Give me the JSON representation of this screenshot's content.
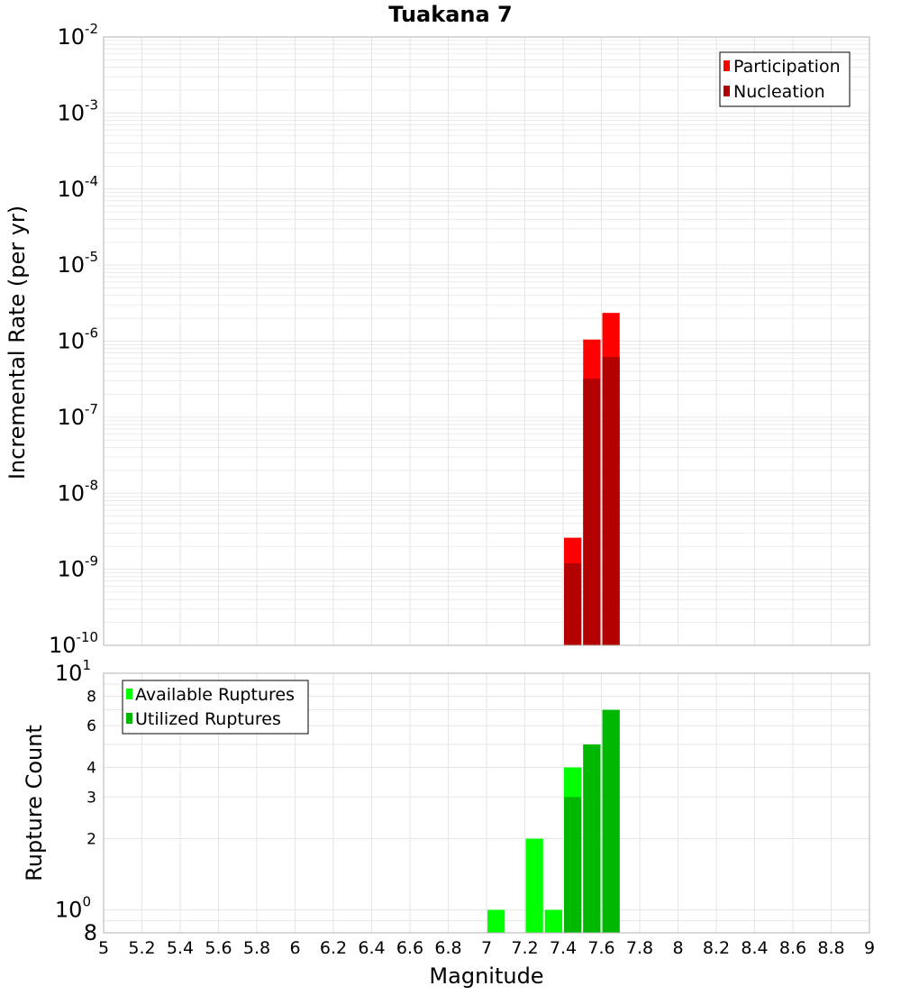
{
  "title": "Tuakana 7",
  "colors": {
    "participation": "#ff0000",
    "nucleation": "#b30000",
    "available": "#00ff00",
    "utilized": "#00b800",
    "grid": "#e6e6e6",
    "frame": "#b0b0b0"
  },
  "chart_data": [
    {
      "type": "bar",
      "title": "Tuakana 7",
      "xlabel": "",
      "ylabel": "Incremental Rate (per yr)",
      "xlim": [
        5,
        9
      ],
      "ylim": [
        1e-10,
        0.01
      ],
      "yscale": "log",
      "grid": true,
      "legend_position": "top-right",
      "bin_width": 0.1,
      "y_ticks": [
        {
          "value": 0.01,
          "base": "10",
          "exp": "-2"
        },
        {
          "value": 0.001,
          "base": "10",
          "exp": "-3"
        },
        {
          "value": 0.0001,
          "base": "10",
          "exp": "-4"
        },
        {
          "value": 1e-05,
          "base": "10",
          "exp": "-5"
        },
        {
          "value": 1e-06,
          "base": "10",
          "exp": "-6"
        },
        {
          "value": 1e-07,
          "base": "10",
          "exp": "-7"
        },
        {
          "value": 1e-08,
          "base": "10",
          "exp": "-8"
        },
        {
          "value": 1e-09,
          "base": "10",
          "exp": "-9"
        },
        {
          "value": 1e-10,
          "base": "10",
          "exp": "-10"
        }
      ],
      "x": [
        7.45,
        7.55,
        7.65
      ],
      "series": [
        {
          "name": "Participation",
          "values": [
            2.6e-09,
            1.05e-06,
            2.35e-06
          ]
        },
        {
          "name": "Nucleation",
          "values": [
            1.2e-09,
            3.2e-07,
            6.2e-07
          ]
        }
      ]
    },
    {
      "type": "bar",
      "xlabel": "Magnitude",
      "ylabel": "Rupture Count",
      "xlim": [
        5,
        9
      ],
      "ylim": [
        0.8,
        10
      ],
      "yscale": "log",
      "grid": true,
      "legend_position": "top-left",
      "bin_width": 0.1,
      "y_ticks": [
        {
          "value": 10,
          "base": "10",
          "exp": "1",
          "major": true
        },
        {
          "value": 8,
          "label": "8"
        },
        {
          "value": 6,
          "label": "6"
        },
        {
          "value": 4,
          "label": "4"
        },
        {
          "value": 3,
          "label": "3"
        },
        {
          "value": 2,
          "label": "2"
        },
        {
          "value": 1,
          "base": "10",
          "exp": "0",
          "major": true
        },
        {
          "value": 0.8,
          "label": "8",
          "major": true
        }
      ],
      "x": [
        7.05,
        7.25,
        7.35,
        7.45,
        7.55,
        7.65
      ],
      "series": [
        {
          "name": "Available Ruptures",
          "values": [
            1,
            2,
            1,
            4,
            5,
            7
          ]
        },
        {
          "name": "Utilized Ruptures",
          "values": [
            0,
            0,
            0,
            3,
            5,
            7
          ]
        }
      ],
      "x_ticks": [
        "5",
        "5.2",
        "5.4",
        "5.6",
        "5.8",
        "6",
        "6.2",
        "6.4",
        "6.6",
        "6.8",
        "7",
        "7.2",
        "7.4",
        "7.6",
        "7.8",
        "8",
        "8.2",
        "8.4",
        "8.6",
        "8.8",
        "9"
      ]
    }
  ]
}
